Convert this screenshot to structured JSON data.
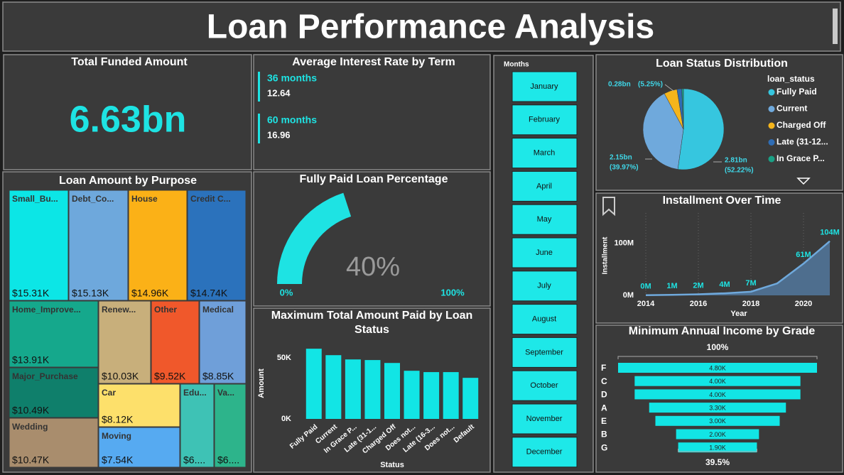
{
  "header": {
    "title": "Loan Performance Analysis"
  },
  "total_funded": {
    "title": "Total Funded Amount",
    "value": "6.63bn"
  },
  "interest_by_term": {
    "title": "Average Interest Rate by Term",
    "terms": [
      "36 months",
      "60 months"
    ],
    "values": [
      12.64,
      16.96
    ]
  },
  "purpose": {
    "title": "Loan Amount by Purpose",
    "type": "treemap",
    "categories": [
      "Small_Bu...",
      "Debt_Co...",
      "House",
      "Credit C...",
      "Home_Improve...",
      "Renew...",
      "Other",
      "Medical",
      "Major_Purchase",
      "Wedding",
      "Car",
      "Moving",
      "Edu...",
      "Va..."
    ],
    "values": [
      15.31,
      15.13,
      14.96,
      14.74,
      13.91,
      10.03,
      9.52,
      8.85,
      10.49,
      10.47,
      8.12,
      7.54,
      6.4,
      6.2
    ],
    "value_labels": [
      "$15.31K",
      "$15.13K",
      "$14.96K",
      "$14.74K",
      "$13.91K",
      "$10.03K",
      "$9.52K",
      "$8.85K",
      "$10.49K",
      "$10.47K",
      "$8.12K",
      "$7.54K",
      "$6....",
      "$6...."
    ],
    "colors": [
      "#0ce6e6",
      "#6ea8dc",
      "#fbb117",
      "#2b72bc",
      "#15a88c",
      "#c8af7b",
      "#f0582b",
      "#6f9fd9",
      "#0f7f6b",
      "#a98d6d",
      "#fde06b",
      "#56aaf1",
      "#3ec2b5",
      "#2db48b"
    ]
  },
  "paid_pct": {
    "title": "Fully Paid Loan Percentage",
    "type": "gauge",
    "value": 40,
    "value_label": "40%",
    "min": {
      "value": 0,
      "label": "0%"
    },
    "max": {
      "value": 100,
      "label": "100%"
    },
    "color": "#1ee3e3"
  },
  "max_paid": {
    "title": "Maximum Total Amount Paid by Loan Status",
    "type": "bar",
    "categories": [
      "Fully Paid",
      "Current",
      "In Grace P...",
      "Late (31-1...",
      "Charged Off",
      "Does not...",
      "Late (16-3...",
      "Does not...",
      "Default"
    ],
    "values": [
      57.6,
      52.3,
      48.8,
      48.3,
      45.9,
      39.5,
      38.4,
      38.4,
      33.7
    ],
    "x_label": "Status",
    "y_label": "Amount",
    "ylim": [
      0,
      60
    ],
    "yticks": [
      {
        "value": 0,
        "label": "0K"
      },
      {
        "value": 50,
        "label": "50K"
      }
    ],
    "color": "#12e5e5"
  },
  "months": {
    "title": "Months",
    "items": [
      "January",
      "February",
      "March",
      "April",
      "May",
      "June",
      "July",
      "August",
      "September",
      "October",
      "November",
      "December"
    ]
  },
  "status": {
    "title": "Loan Status Distribution",
    "type": "pie",
    "legend_title": "loan_status",
    "categories": [
      "Fully Paid",
      "Current",
      "Charged Off",
      "Late (31-12...",
      "In Grace P..."
    ],
    "values": [
      52.22,
      39.97,
      5.25,
      1.9,
      0.66
    ],
    "amount_labels": [
      "2.81bn",
      "2.15bn",
      "0.28bn",
      null,
      null
    ],
    "value_labels": [
      "(52.22%)",
      "(39.97%)",
      "(5.25%)",
      null,
      null
    ],
    "colors": [
      "#36c6df",
      "#6fa9dc",
      "#f5b51c",
      "#2f6db5",
      "#1aa085"
    ]
  },
  "installment": {
    "title": "Installment Over Time",
    "type": "area",
    "x": [
      2014,
      2015,
      2016,
      2017,
      2018,
      2019,
      2020,
      2021
    ],
    "values": [
      0.4,
      1,
      2,
      4,
      7,
      23,
      61,
      104
    ],
    "value_labels": [
      "0M",
      "1M",
      "2M",
      "4M",
      "7M",
      null,
      "61M",
      "104M"
    ],
    "x_label": "Year",
    "y_label": "Installment",
    "xlim": [
      2014,
      2021
    ],
    "xticks": [
      2014,
      2016,
      2018,
      2020
    ],
    "ylim": [
      0,
      120
    ],
    "yticks": [
      {
        "value": 0,
        "label": "0M"
      },
      {
        "value": 100,
        "label": "100M"
      }
    ],
    "color": "#6fa9dc",
    "area_color": "#4e6e8e"
  },
  "income": {
    "title": "Minimum Annual Income by Grade",
    "type": "funnel",
    "categories": [
      "F",
      "C",
      "D",
      "A",
      "E",
      "B",
      "G"
    ],
    "values": [
      4.8,
      4.0,
      4.0,
      3.3,
      3.0,
      2.0,
      1.9
    ],
    "value_labels": [
      "4.80K",
      "4.00K",
      "4.00K",
      "3.30K",
      "3.00K",
      "2.00K",
      "1.90K"
    ],
    "top_label": "100%",
    "bottom_label": "39.5%",
    "color": "#12e5e5"
  }
}
